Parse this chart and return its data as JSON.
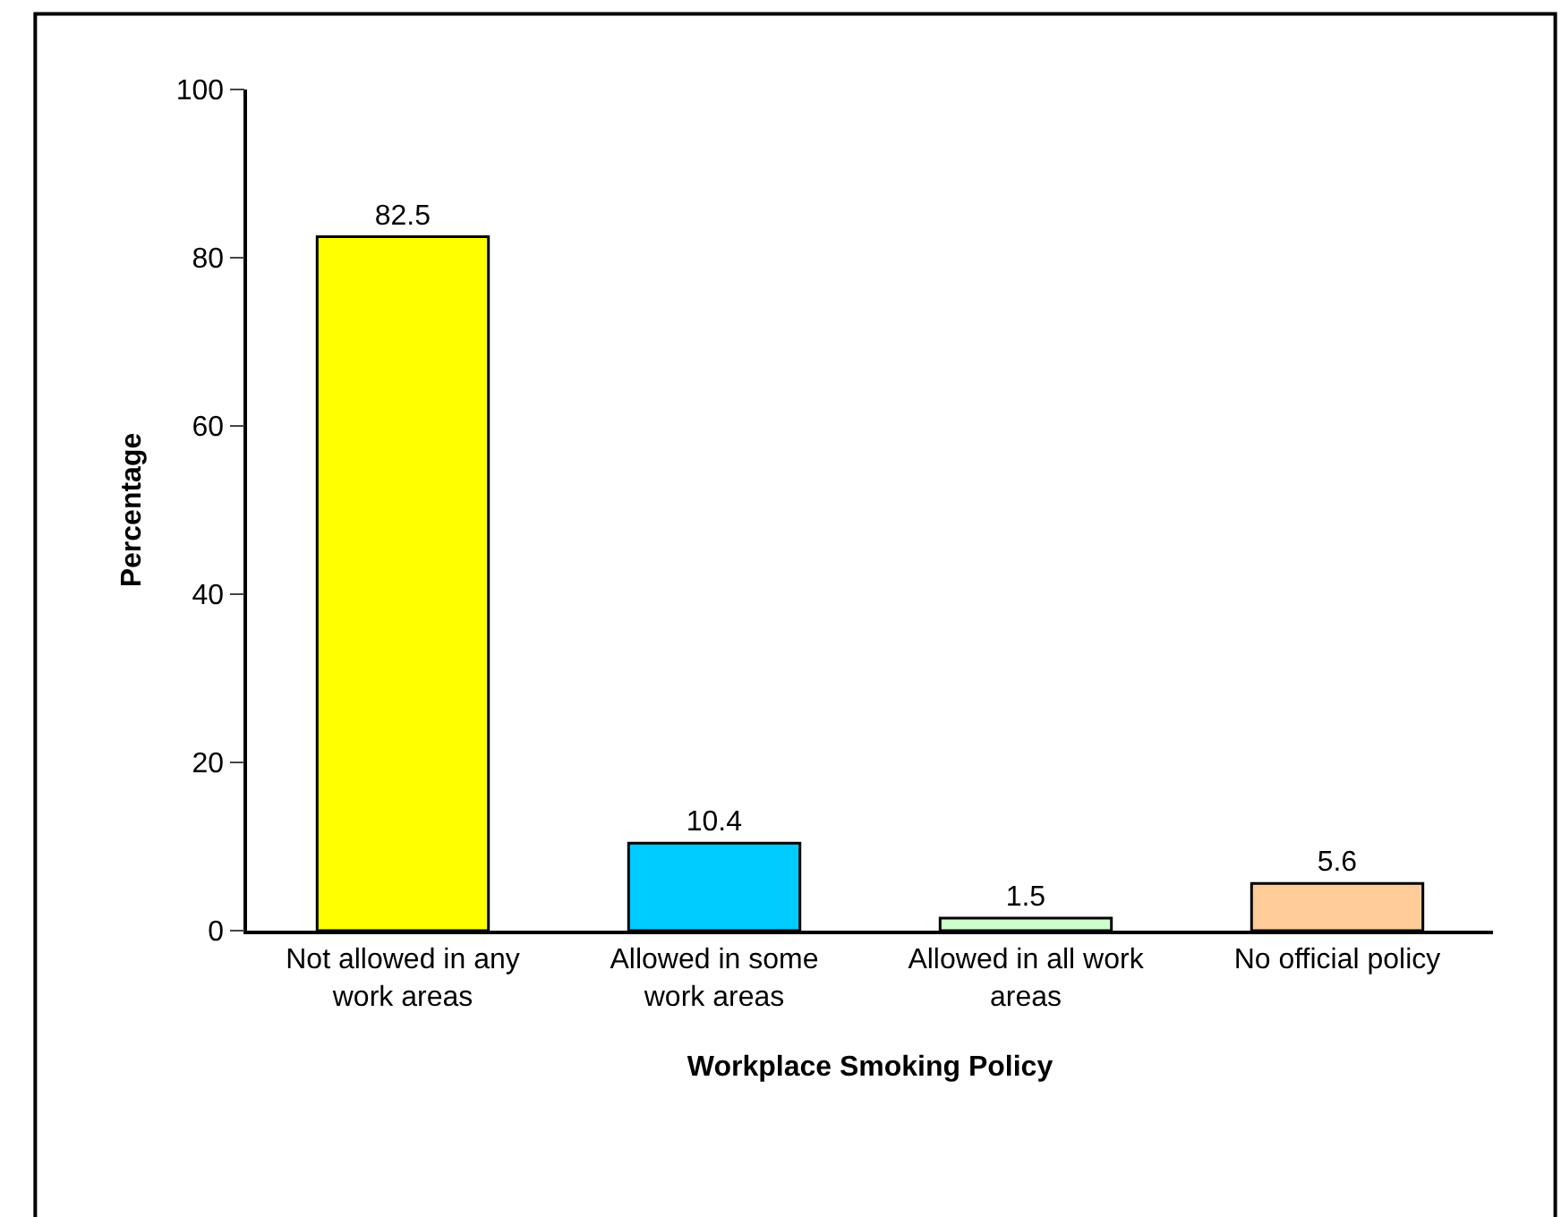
{
  "chart_data": {
    "type": "bar",
    "xlabel": "Workplace Smoking Policy",
    "ylabel": "Percentage",
    "categories": [
      "Not allowed in any work areas",
      "Allowed in some work areas",
      "Allowed in all work areas",
      "No official policy"
    ],
    "values": [
      82.5,
      10.4,
      1.5,
      5.6
    ],
    "colors": [
      "#ffff00",
      "#00ccff",
      "#ccffcc",
      "#ffcc99"
    ],
    "ylim": [
      0,
      100
    ],
    "yticks": [
      0,
      20,
      40,
      60,
      80,
      100
    ],
    "data_labels": true
  }
}
